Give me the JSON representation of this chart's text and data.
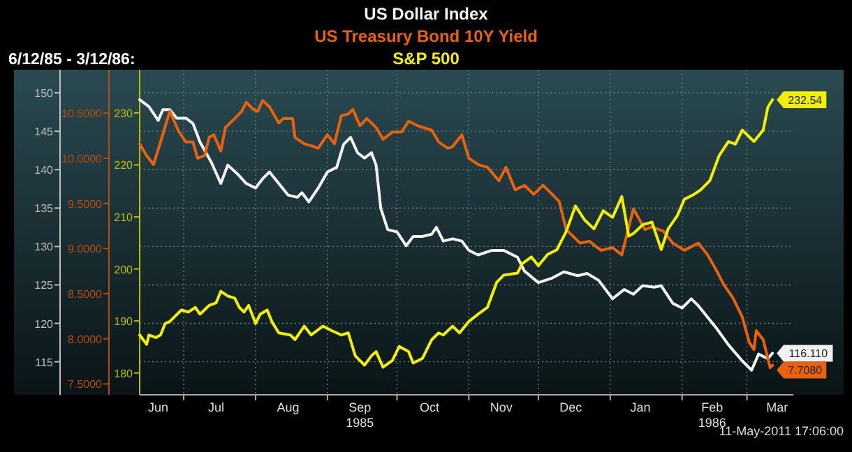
{
  "chart_data": {
    "type": "line",
    "subtitle": "6/12/85 - 3/12/86:",
    "legend": "top",
    "grid": true,
    "marker": "none",
    "line_style": "solid",
    "annotations": [
      "11-May-2011 17:06:00"
    ],
    "xlim": [
      "1985-06-12",
      "1986-03-21"
    ],
    "xticks": [
      {
        "value": "1985-06-20",
        "label": "Jun"
      },
      {
        "value": "1985-07-01",
        "label": null
      },
      {
        "value": "1985-07-15",
        "label": "Jul"
      },
      {
        "value": "1985-08-01",
        "label": null
      },
      {
        "value": "1985-08-15",
        "label": "Aug"
      },
      {
        "value": "1985-09-01",
        "label": null
      },
      {
        "value": "1985-09-15",
        "label": "Sep\n1985"
      },
      {
        "value": "1985-10-01",
        "label": null
      },
      {
        "value": "1985-10-15",
        "label": "Oct"
      },
      {
        "value": "1985-11-01",
        "label": null
      },
      {
        "value": "1985-11-15",
        "label": "Nov"
      },
      {
        "value": "1985-12-01",
        "label": null
      },
      {
        "value": "1985-12-15",
        "label": "Dec"
      },
      {
        "value": "1986-01-01",
        "label": null
      },
      {
        "value": "1986-01-14",
        "label": "Jan"
      },
      {
        "value": "1986-02-01",
        "label": null
      },
      {
        "value": "1986-02-14",
        "label": "Feb\n1986"
      },
      {
        "value": "1986-03-01",
        "label": null
      },
      {
        "value": "1986-03-14",
        "label": "Mar"
      }
    ],
    "ylim": [
      110.7,
      153.0
    ],
    "yticks": [
      115,
      120,
      125,
      130,
      135,
      140,
      145,
      150
    ],
    "y2lim": [
      7.38,
      10.98
    ],
    "y2ticks": [
      {
        "value": 7.5,
        "label": "7.5000"
      },
      {
        "value": 8,
        "label": "8.0000"
      },
      {
        "value": 8.5,
        "label": "8.5000"
      },
      {
        "value": 9,
        "label": "9.0000"
      },
      {
        "value": 9.5,
        "label": "9.5000"
      },
      {
        "value": 10,
        "label": "10.0000"
      },
      {
        "value": 10.5,
        "label": "10.5000"
      }
    ],
    "y3lim": [
      175.8,
      238.3
    ],
    "y3ticks": [
      180,
      190,
      200,
      210,
      220,
      230
    ],
    "series": [
      {
        "name": "US Dollar Index",
        "color": "#f2f2f2",
        "axis": "y",
        "x": [
          "1985-06-12",
          "1985-06-16",
          "1985-06-20",
          "1985-06-22",
          "1985-06-25",
          "1985-06-28",
          "1985-07-02",
          "1985-07-05",
          "1985-07-08",
          "1985-07-13",
          "1985-07-17",
          "1985-07-20",
          "1985-07-24",
          "1985-07-28",
          "1985-08-01",
          "1985-08-04",
          "1985-08-07",
          "1985-08-11",
          "1985-08-15",
          "1985-08-19",
          "1985-08-21",
          "1985-08-24",
          "1985-08-28",
          "1985-09-01",
          "1985-09-05",
          "1985-09-08",
          "1985-09-11",
          "1985-09-14",
          "1985-09-17",
          "1985-09-20",
          "1985-09-22",
          "1985-09-24",
          "1985-09-27",
          "1985-10-01",
          "1985-10-05",
          "1985-10-08",
          "1985-10-12",
          "1985-10-16",
          "1985-10-18",
          "1985-10-21",
          "1985-10-25",
          "1985-10-29",
          "1985-11-01",
          "1985-11-05",
          "1985-11-11",
          "1985-11-16",
          "1985-11-22",
          "1985-11-25",
          "1985-12-01",
          "1985-12-07",
          "1985-12-12",
          "1985-12-18",
          "1985-12-22",
          "1985-12-27",
          "1986-01-02",
          "1986-01-07",
          "1986-01-11",
          "1986-01-15",
          "1986-01-20",
          "1986-01-23",
          "1986-01-28",
          "1986-02-01",
          "1986-02-05",
          "1986-02-08",
          "1986-02-12",
          "1986-02-16",
          "1986-02-21",
          "1986-02-27",
          "1986-03-03",
          "1986-03-06",
          "1986-03-10",
          "1986-03-12"
        ],
        "values": [
          149.1,
          148.2,
          146.4,
          147.8,
          147.8,
          146.7,
          146.7,
          146.0,
          143.6,
          140.9,
          138.2,
          140.6,
          139.5,
          138.2,
          137.6,
          138.8,
          139.7,
          138.2,
          136.7,
          136.4,
          137.0,
          135.8,
          137.6,
          139.7,
          140.3,
          143.3,
          144.2,
          142.2,
          141.5,
          142.2,
          140.6,
          135.0,
          132.2,
          131.9,
          130.1,
          131.3,
          131.3,
          131.6,
          132.5,
          130.7,
          131.0,
          130.7,
          129.5,
          128.9,
          129.5,
          129.5,
          128.6,
          126.8,
          125.3,
          125.9,
          126.7,
          126.2,
          126.5,
          125.6,
          123.2,
          124.4,
          123.8,
          124.9,
          124.7,
          124.9,
          122.6,
          122.0,
          123.2,
          122.3,
          120.8,
          119.3,
          117.2,
          115.1,
          113.9,
          116.0,
          115.4,
          116.11
        ],
        "value_labels": [
          null,
          null,
          null,
          null,
          null,
          null,
          null,
          null,
          null,
          null,
          null,
          null,
          null,
          null,
          null,
          null,
          null,
          null,
          null,
          null,
          null,
          null,
          null,
          null,
          null,
          null,
          null,
          null,
          null,
          null,
          null,
          null,
          null,
          null,
          null,
          null,
          null,
          null,
          null,
          null,
          null,
          null,
          null,
          null,
          null,
          null,
          null,
          null,
          null,
          null,
          null,
          null,
          null,
          null,
          null,
          null,
          null,
          null,
          null,
          null,
          null,
          null,
          null,
          null,
          null,
          null,
          null,
          null,
          null,
          null,
          null,
          "116.110"
        ]
      },
      {
        "name": "US Treasury Bond 10Y Yield",
        "color": "#e8620c",
        "axis": "y2",
        "x": [
          "1985-06-12",
          "1985-06-15",
          "1985-06-18",
          "1985-06-21",
          "1985-06-25",
          "1985-06-29",
          "1985-07-02",
          "1985-07-05",
          "1985-07-07",
          "1985-07-10",
          "1985-07-12",
          "1985-07-14",
          "1985-07-17",
          "1985-07-19",
          "1985-07-23",
          "1985-07-26",
          "1985-07-28",
          "1985-07-31",
          "1985-08-02",
          "1985-08-04",
          "1985-08-07",
          "1985-08-11",
          "1985-08-13",
          "1985-08-17",
          "1985-08-18",
          "1985-08-22",
          "1985-08-26",
          "1985-08-28",
          "1985-09-01",
          "1985-09-04",
          "1985-09-07",
          "1985-09-10",
          "1985-09-12",
          "1985-09-15",
          "1985-09-18",
          "1985-09-22",
          "1985-09-25",
          "1985-09-29",
          "1985-10-03",
          "1985-10-06",
          "1985-10-10",
          "1985-10-16",
          "1985-10-19",
          "1985-10-23",
          "1985-10-25",
          "1985-10-29",
          "1985-11-01",
          "1985-11-05",
          "1985-11-09",
          "1985-11-14",
          "1985-11-17",
          "1985-11-21",
          "1985-11-25",
          "1985-11-29",
          "1985-12-03",
          "1985-12-07",
          "1985-12-10",
          "1985-12-13",
          "1985-12-19",
          "1985-12-23",
          "1985-12-28",
          "1986-01-02",
          "1986-01-06",
          "1986-01-11",
          "1986-01-16",
          "1986-01-19",
          "1986-01-24",
          "1986-01-28",
          "1986-02-02",
          "1986-02-08",
          "1986-02-12",
          "1986-02-16",
          "1986-02-19",
          "1986-02-23",
          "1986-02-27",
          "1986-03-02",
          "1986-03-04",
          "1986-03-05",
          "1986-03-08",
          "1986-03-11",
          "1986-03-12"
        ],
        "values": [
          10.16,
          10.03,
          9.93,
          10.18,
          10.52,
          10.29,
          10.18,
          10.18,
          10.0,
          10.03,
          10.23,
          10.26,
          10.08,
          10.34,
          10.44,
          10.52,
          10.62,
          10.54,
          10.52,
          10.64,
          10.57,
          10.39,
          10.44,
          10.44,
          10.23,
          10.16,
          10.13,
          10.11,
          10.26,
          10.16,
          10.47,
          10.49,
          10.54,
          10.36,
          10.44,
          10.34,
          10.21,
          10.29,
          10.29,
          10.41,
          10.36,
          10.31,
          10.18,
          10.11,
          10.13,
          10.26,
          10.0,
          9.93,
          9.9,
          9.75,
          9.9,
          9.65,
          9.7,
          9.6,
          9.7,
          9.6,
          9.52,
          9.21,
          9.06,
          9.08,
          8.98,
          9.01,
          8.93,
          9.44,
          9.21,
          9.24,
          9.19,
          9.06,
          8.98,
          9.06,
          8.93,
          8.75,
          8.6,
          8.45,
          8.24,
          7.96,
          7.88,
          8.09,
          7.99,
          7.68,
          7.708
        ],
        "value_labels": [
          null,
          null,
          null,
          null,
          null,
          null,
          null,
          null,
          null,
          null,
          null,
          null,
          null,
          null,
          null,
          null,
          null,
          null,
          null,
          null,
          null,
          null,
          null,
          null,
          null,
          null,
          null,
          null,
          null,
          null,
          null,
          null,
          null,
          null,
          null,
          null,
          null,
          null,
          null,
          null,
          null,
          null,
          null,
          null,
          null,
          null,
          null,
          null,
          null,
          null,
          null,
          null,
          null,
          null,
          null,
          null,
          null,
          null,
          null,
          null,
          null,
          null,
          null,
          null,
          null,
          null,
          null,
          null,
          null,
          null,
          null,
          null,
          null,
          null,
          null,
          null,
          null,
          null,
          null,
          null,
          "7.7080"
        ]
      },
      {
        "name": "S&P 500",
        "color": "#f0f000",
        "axis": "y3",
        "x": [
          "1985-06-12",
          "1985-06-15",
          "1985-06-16",
          "1985-06-19",
          "1985-06-21",
          "1985-06-23",
          "1985-06-25",
          "1985-06-30",
          "1985-07-03",
          "1985-07-06",
          "1985-07-08",
          "1985-07-12",
          "1985-07-15",
          "1985-07-17",
          "1985-07-20",
          "1985-07-23",
          "1985-07-25",
          "1985-07-27",
          "1985-07-29",
          "1985-08-01",
          "1985-08-03",
          "1985-08-06",
          "1985-08-08",
          "1985-08-11",
          "1985-08-16",
          "1985-08-18",
          "1985-08-22",
          "1985-08-25",
          "1985-08-30",
          "1985-09-03",
          "1985-09-07",
          "1985-09-10",
          "1985-09-13",
          "1985-09-17",
          "1985-09-20",
          "1985-09-22",
          "1985-09-25",
          "1985-09-29",
          "1985-10-02",
          "1985-10-06",
          "1985-10-08",
          "1985-10-12",
          "1985-10-16",
          "1985-10-19",
          "1985-10-21",
          "1985-10-25",
          "1985-10-28",
          "1985-11-01",
          "1985-11-05",
          "1985-11-09",
          "1985-11-13",
          "1985-11-16",
          "1985-11-22",
          "1985-11-24",
          "1985-11-28",
          "1985-12-01",
          "1985-12-05",
          "1985-12-09",
          "1985-12-13",
          "1985-12-17",
          "1985-12-21",
          "1985-12-25",
          "1985-12-29",
          "1986-01-02",
          "1986-01-06",
          "1986-01-09",
          "1986-01-11",
          "1986-01-15",
          "1986-01-19",
          "1986-01-23",
          "1986-01-26",
          "1986-01-30",
          "1986-02-02",
          "1986-02-06",
          "1986-02-09",
          "1986-02-13",
          "1986-02-17",
          "1986-02-21",
          "1986-02-24",
          "1986-02-27",
          "1986-03-04",
          "1986-03-08",
          "1986-03-10",
          "1986-03-12"
        ],
        "values": [
          187.3,
          185.5,
          187.3,
          186.8,
          187.3,
          189.5,
          189.9,
          192.1,
          191.7,
          192.6,
          191.3,
          193.0,
          193.5,
          195.7,
          194.8,
          194.4,
          192.6,
          191.7,
          193.0,
          189.5,
          191.3,
          192.1,
          189.9,
          187.7,
          187.3,
          186.4,
          189.0,
          187.3,
          189.0,
          188.1,
          187.3,
          187.7,
          183.3,
          181.5,
          183.3,
          184.1,
          181.1,
          182.4,
          185.1,
          184.1,
          181.9,
          182.8,
          186.4,
          187.7,
          187.3,
          189.0,
          187.7,
          189.9,
          191.3,
          192.6,
          197.4,
          198.8,
          199.2,
          201.0,
          202.3,
          200.6,
          202.8,
          203.7,
          207.2,
          212.1,
          209.4,
          207.7,
          211.2,
          209.9,
          213.9,
          206.3,
          206.8,
          208.5,
          209.0,
          203.7,
          207.7,
          210.3,
          213.4,
          214.3,
          215.2,
          217.0,
          221.8,
          224.5,
          224.0,
          226.7,
          224.5,
          226.7,
          231.1,
          232.54
        ],
        "value_labels": [
          null,
          null,
          null,
          null,
          null,
          null,
          null,
          null,
          null,
          null,
          null,
          null,
          null,
          null,
          null,
          null,
          null,
          null,
          null,
          null,
          null,
          null,
          null,
          null,
          null,
          null,
          null,
          null,
          null,
          null,
          null,
          null,
          null,
          null,
          null,
          null,
          null,
          null,
          null,
          null,
          null,
          null,
          null,
          null,
          null,
          null,
          null,
          null,
          null,
          null,
          null,
          null,
          null,
          null,
          null,
          null,
          null,
          null,
          null,
          null,
          null,
          null,
          null,
          null,
          null,
          null,
          null,
          null,
          null,
          null,
          null,
          null,
          null,
          null,
          null,
          null,
          null,
          null,
          null,
          null,
          null,
          null,
          null,
          "232.54"
        ]
      }
    ]
  }
}
